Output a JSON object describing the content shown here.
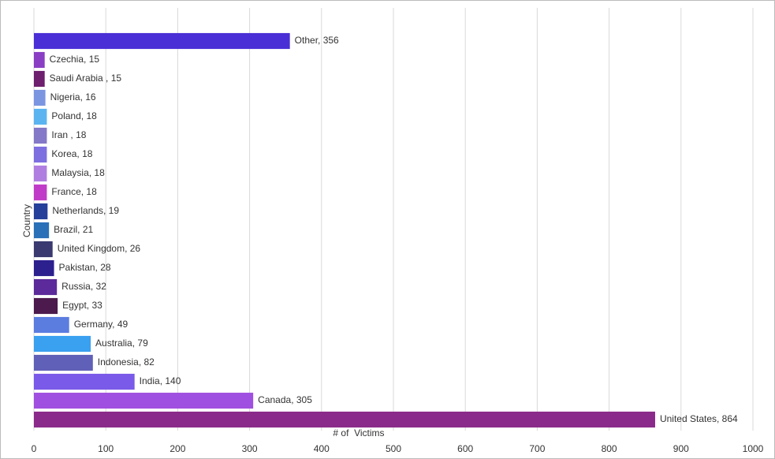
{
  "chart_data": {
    "type": "bar",
    "orientation": "horizontal",
    "x_label": "# of  Victims",
    "y_label": "Country",
    "values": [
      356,
      15,
      15,
      16,
      18,
      18,
      18,
      18,
      18,
      19,
      21,
      26,
      28,
      32,
      33,
      49,
      79,
      82,
      140,
      305,
      864
    ],
    "value_labels": [
      "Other, 356",
      "Czechia, 15",
      "Saudi Arabia , 15",
      "Nigeria, 16",
      "Poland, 18",
      "Iran , 18",
      "Korea, 18",
      "Malaysia, 18",
      "France, 18",
      "Netherlands, 19",
      "Brazil, 21",
      "United Kingdom, 26",
      "Pakistan, 28",
      "Russia, 32",
      "Egypt, 33",
      "Germany, 49",
      "Australia, 79",
      "Indonesia, 82",
      "India, 140",
      "Canada, 305",
      "United States, 864"
    ],
    "colors": [
      "#4a2fd6",
      "#8a3ec4",
      "#6e1f6e",
      "#7b95e0",
      "#5bb4f0",
      "#8478c8",
      "#7d6fe0",
      "#b07ee0",
      "#c03cc8",
      "#25409a",
      "#2a70b8",
      "#3a3a70",
      "#2c1f8e",
      "#5c2a9a",
      "#4c1a4c",
      "#5b7de0",
      "#3aa0f0",
      "#6060b8",
      "#7a5ae8",
      "#a050e0",
      "#8a2a8a"
    ],
    "xlim": [
      0,
      1000
    ],
    "xticks": [
      0,
      100,
      200,
      300,
      400,
      500,
      600,
      700,
      800,
      900,
      1000
    ],
    "grid": true
  }
}
